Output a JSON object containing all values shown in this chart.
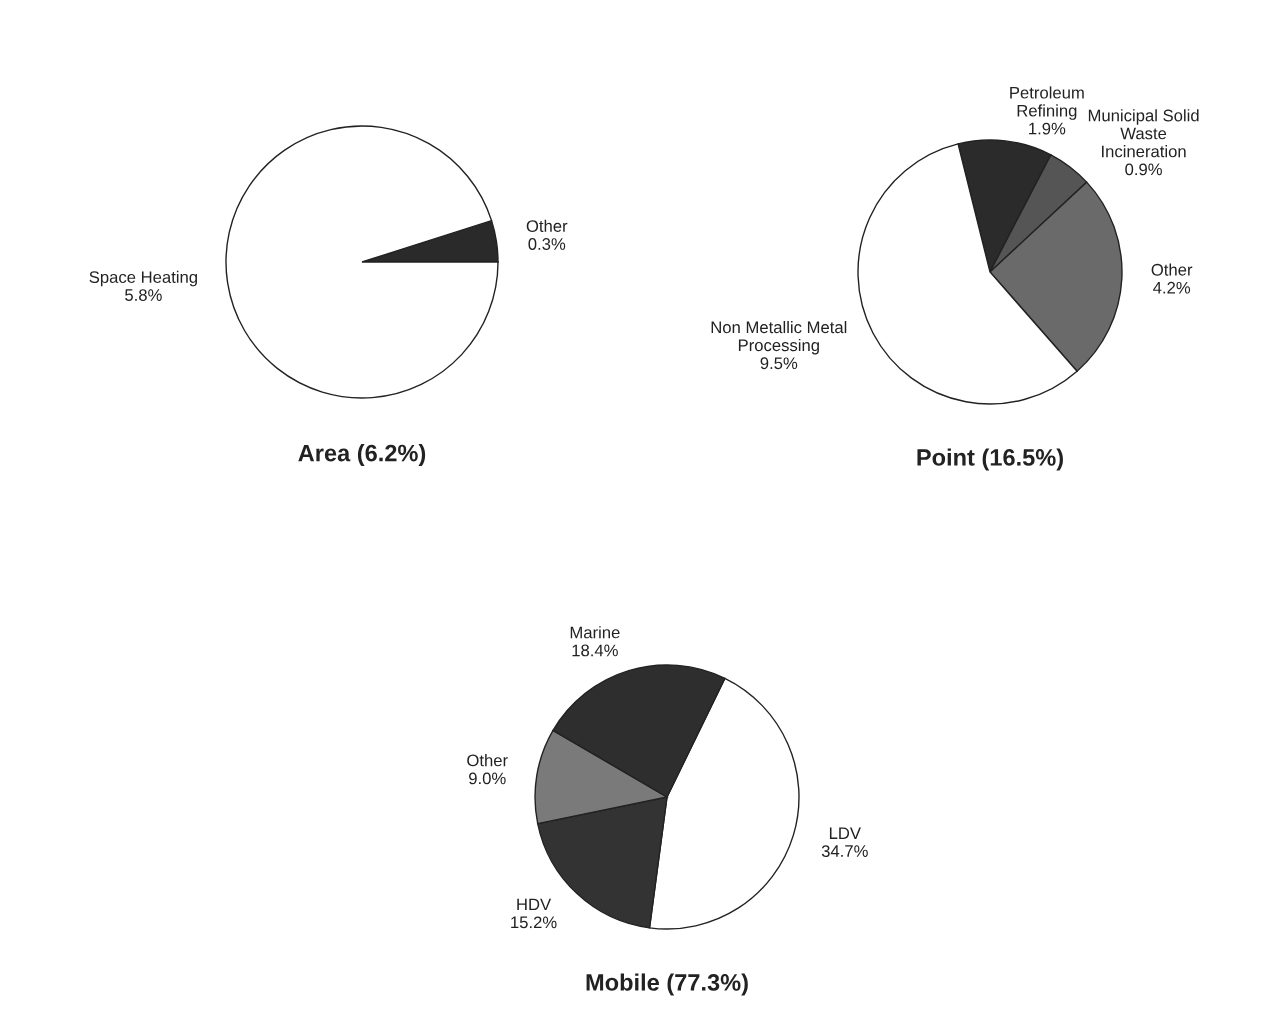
{
  "chart_data": [
    {
      "type": "pie",
      "title": "Area (6.2%)",
      "categories": [
        "Other",
        "Space Heating"
      ],
      "values": [
        0.3,
        5.8
      ],
      "value_labels": [
        "0.3%",
        "5.8%"
      ],
      "colors": [
        "#2a2a2a",
        "#ffffff"
      ],
      "legend": false
    },
    {
      "type": "pie",
      "title": "Point (16.5%)",
      "categories": [
        "Petroleum\nRefining",
        "Municipal Solid\nWaste\nIncineration",
        "Other",
        "Non Metallic Metal\nProcessing"
      ],
      "values": [
        1.9,
        0.9,
        4.2,
        9.5
      ],
      "value_labels": [
        "1.9%",
        "0.9%",
        "4.2%",
        "9.5%"
      ],
      "colors": [
        "#2b2b2b",
        "#555555",
        "#6a6a6a",
        "#ffffff"
      ],
      "legend": false
    },
    {
      "type": "pie",
      "title": "Mobile (77.3%)",
      "categories": [
        "LDV",
        "HDV",
        "Other",
        "Marine"
      ],
      "values": [
        34.7,
        15.2,
        9.0,
        18.4
      ],
      "value_labels": [
        "34.7%",
        "15.2%",
        "9.0%",
        "18.4%"
      ],
      "colors": [
        "#ffffff",
        "#333333",
        "#7a7a7a",
        "#2e2e2e"
      ],
      "legend": false
    }
  ]
}
